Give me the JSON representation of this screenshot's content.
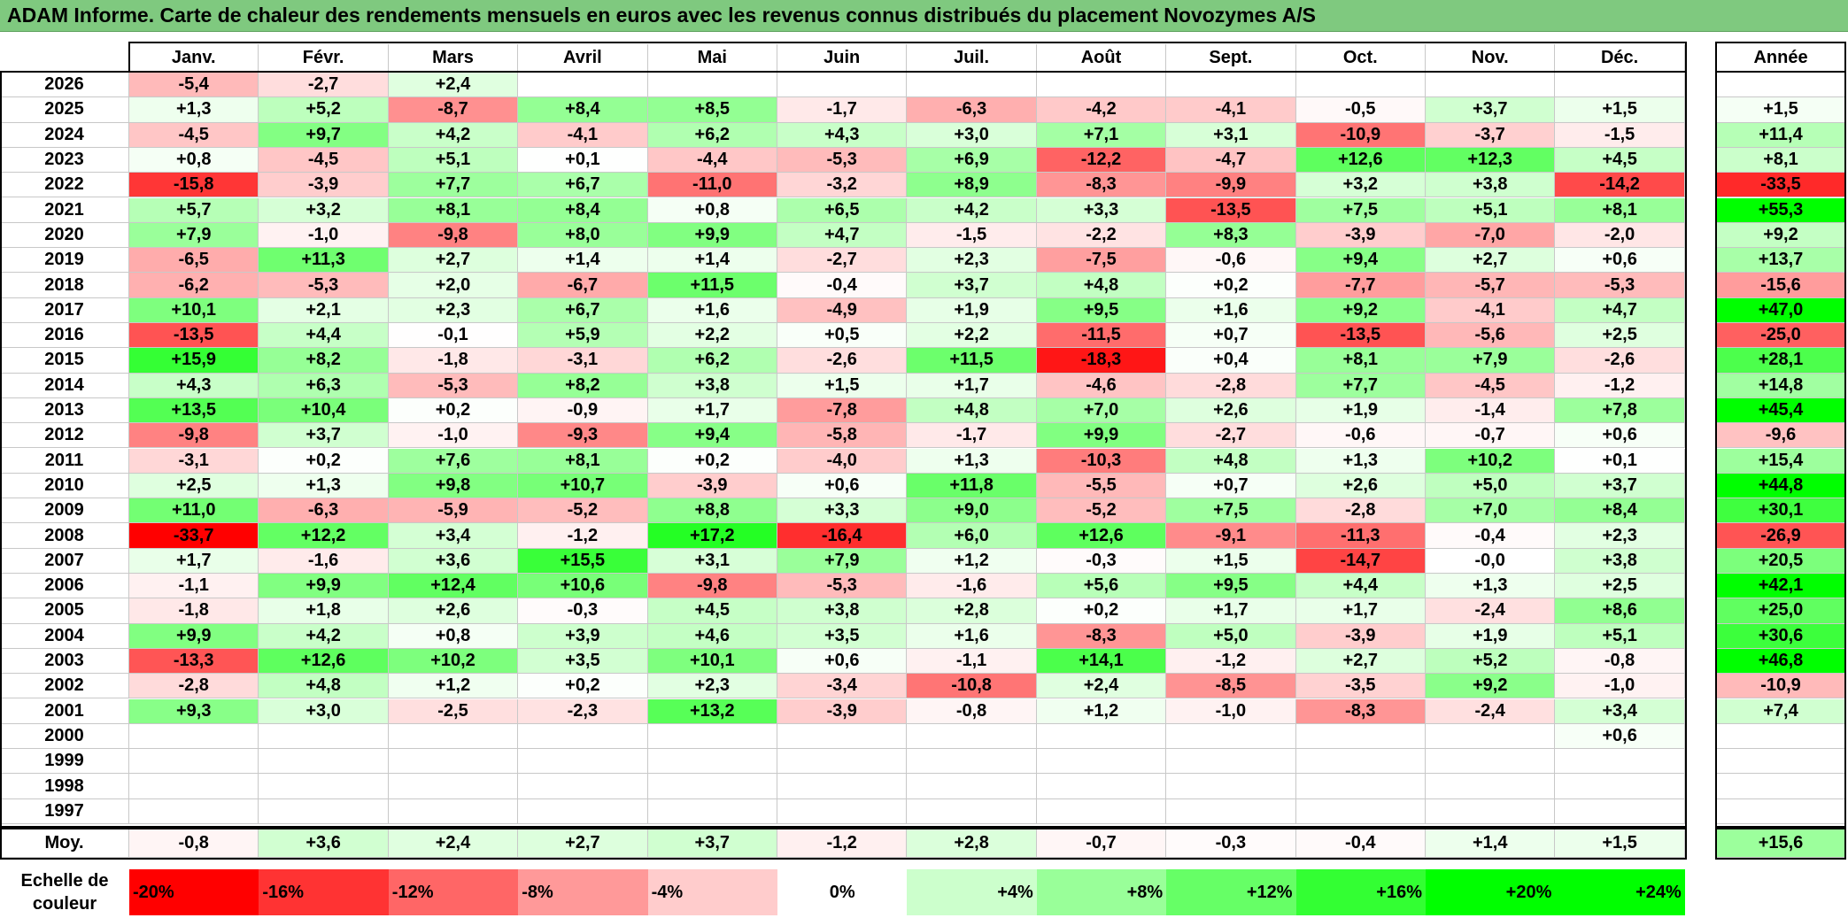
{
  "title": "ADAM Informe. Carte de chaleur des rendements mensuels en euros avec les revenus connus distribués du placement Novozymes A/S",
  "chart_data": {
    "type": "heatmap",
    "title": "ADAM Informe. Carte de chaleur des rendements mensuels en euros avec les revenus connus distribués du placement Novozymes A/S",
    "columns": [
      "Janv.",
      "Févr.",
      "Mars",
      "Avril",
      "Mai",
      "Juin",
      "Juil.",
      "Août",
      "Sept.",
      "Oct.",
      "Nov.",
      "Déc."
    ],
    "year_label": "Année",
    "rows": [
      {
        "year": "2026",
        "values": [
          "-5,4",
          "-2,7",
          "+2,4",
          "",
          "",
          "",
          "",
          "",
          "",
          "",
          "",
          ""
        ],
        "annual": ""
      },
      {
        "year": "2025",
        "values": [
          "+1,3",
          "+5,2",
          "-8,7",
          "+8,4",
          "+8,5",
          "-1,7",
          "-6,3",
          "-4,2",
          "-4,1",
          "-0,5",
          "+3,7",
          "+1,5"
        ],
        "annual": "+1,5"
      },
      {
        "year": "2024",
        "values": [
          "-4,5",
          "+9,7",
          "+4,2",
          "-4,1",
          "+6,2",
          "+4,3",
          "+3,0",
          "+7,1",
          "+3,1",
          "-10,9",
          "-3,7",
          "-1,5"
        ],
        "annual": "+11,4"
      },
      {
        "year": "2023",
        "values": [
          "+0,8",
          "-4,5",
          "+5,1",
          "+0,1",
          "-4,4",
          "-5,3",
          "+6,9",
          "-12,2",
          "-4,7",
          "+12,6",
          "+12,3",
          "+4,5"
        ],
        "annual": "+8,1"
      },
      {
        "year": "2022",
        "values": [
          "-15,8",
          "-3,9",
          "+7,7",
          "+6,7",
          "-11,0",
          "-3,2",
          "+8,9",
          "-8,3",
          "-9,9",
          "+3,2",
          "+3,8",
          "-14,2"
        ],
        "annual": "-33,5"
      },
      {
        "year": "2021",
        "values": [
          "+5,7",
          "+3,2",
          "+8,1",
          "+8,4",
          "+0,8",
          "+6,5",
          "+4,2",
          "+3,3",
          "-13,5",
          "+7,5",
          "+5,1",
          "+8,1"
        ],
        "annual": "+55,3"
      },
      {
        "year": "2020",
        "values": [
          "+7,9",
          "-1,0",
          "-9,8",
          "+8,0",
          "+9,9",
          "+4,7",
          "-1,5",
          "-2,2",
          "+8,3",
          "-3,9",
          "-7,0",
          "-2,0"
        ],
        "annual": "+9,2"
      },
      {
        "year": "2019",
        "values": [
          "-6,5",
          "+11,3",
          "+2,7",
          "+1,4",
          "+1,4",
          "-2,7",
          "+2,3",
          "-7,5",
          "-0,6",
          "+9,4",
          "+2,7",
          "+0,6"
        ],
        "annual": "+13,7"
      },
      {
        "year": "2018",
        "values": [
          "-6,2",
          "-5,3",
          "+2,0",
          "-6,7",
          "+11,5",
          "-0,4",
          "+3,7",
          "+4,8",
          "+0,2",
          "-7,7",
          "-5,7",
          "-5,3"
        ],
        "annual": "-15,6"
      },
      {
        "year": "2017",
        "values": [
          "+10,1",
          "+2,1",
          "+2,3",
          "+6,7",
          "+1,6",
          "-4,9",
          "+1,9",
          "+9,5",
          "+1,6",
          "+9,2",
          "-4,1",
          "+4,7"
        ],
        "annual": "+47,0"
      },
      {
        "year": "2016",
        "values": [
          "-13,5",
          "+4,4",
          "-0,1",
          "+5,9",
          "+2,2",
          "+0,5",
          "+2,2",
          "-11,5",
          "+0,7",
          "-13,5",
          "-5,6",
          "+2,5"
        ],
        "annual": "-25,0"
      },
      {
        "year": "2015",
        "values": [
          "+15,9",
          "+8,2",
          "-1,8",
          "-3,1",
          "+6,2",
          "-2,6",
          "+11,5",
          "-18,3",
          "+0,4",
          "+8,1",
          "+7,9",
          "-2,6"
        ],
        "annual": "+28,1"
      },
      {
        "year": "2014",
        "values": [
          "+4,3",
          "+6,3",
          "-5,3",
          "+8,2",
          "+3,8",
          "+1,5",
          "+1,7",
          "-4,6",
          "-2,8",
          "+7,7",
          "-4,5",
          "-1,2"
        ],
        "annual": "+14,8"
      },
      {
        "year": "2013",
        "values": [
          "+13,5",
          "+10,4",
          "+0,2",
          "-0,9",
          "+1,7",
          "-7,8",
          "+4,8",
          "+7,0",
          "+2,6",
          "+1,9",
          "-1,4",
          "+7,8"
        ],
        "annual": "+45,4"
      },
      {
        "year": "2012",
        "values": [
          "-9,8",
          "+3,7",
          "-1,0",
          "-9,3",
          "+9,4",
          "-5,8",
          "-1,7",
          "+9,9",
          "-2,7",
          "-0,6",
          "-0,7",
          "+0,6"
        ],
        "annual": "-9,6"
      },
      {
        "year": "2011",
        "values": [
          "-3,1",
          "+0,2",
          "+7,6",
          "+8,1",
          "+0,2",
          "-4,0",
          "+1,3",
          "-10,3",
          "+4,8",
          "+1,3",
          "+10,2",
          "+0,1"
        ],
        "annual": "+15,4"
      },
      {
        "year": "2010",
        "values": [
          "+2,5",
          "+1,3",
          "+9,8",
          "+10,7",
          "-3,9",
          "+0,6",
          "+11,8",
          "-5,5",
          "+0,7",
          "+2,6",
          "+5,0",
          "+3,7"
        ],
        "annual": "+44,8"
      },
      {
        "year": "2009",
        "values": [
          "+11,0",
          "-6,3",
          "-5,9",
          "-5,2",
          "+8,8",
          "+3,3",
          "+9,0",
          "-5,2",
          "+7,5",
          "-2,8",
          "+7,0",
          "+8,4"
        ],
        "annual": "+30,1"
      },
      {
        "year": "2008",
        "values": [
          "-33,7",
          "+12,2",
          "+3,4",
          "-1,2",
          "+17,2",
          "-16,4",
          "+6,0",
          "+12,6",
          "-9,1",
          "-11,3",
          "-0,4",
          "+2,3"
        ],
        "annual": "-26,9"
      },
      {
        "year": "2007",
        "values": [
          "+1,7",
          "-1,6",
          "+3,6",
          "+15,5",
          "+3,1",
          "+7,9",
          "+1,2",
          "-0,3",
          "+1,5",
          "-14,7",
          "-0,0",
          "+3,8"
        ],
        "annual": "+20,5"
      },
      {
        "year": "2006",
        "values": [
          "-1,1",
          "+9,9",
          "+12,4",
          "+10,6",
          "-9,8",
          "-5,3",
          "-1,6",
          "+5,6",
          "+9,5",
          "+4,4",
          "+1,3",
          "+2,5"
        ],
        "annual": "+42,1"
      },
      {
        "year": "2005",
        "values": [
          "-1,8",
          "+1,8",
          "+2,6",
          "-0,3",
          "+4,5",
          "+3,8",
          "+2,8",
          "+0,2",
          "+1,7",
          "+1,7",
          "-2,4",
          "+8,6"
        ],
        "annual": "+25,0"
      },
      {
        "year": "2004",
        "values": [
          "+9,9",
          "+4,2",
          "+0,8",
          "+3,9",
          "+4,6",
          "+3,5",
          "+1,6",
          "-8,3",
          "+5,0",
          "-3,9",
          "+1,9",
          "+5,1"
        ],
        "annual": "+30,6"
      },
      {
        "year": "2003",
        "values": [
          "-13,3",
          "+12,6",
          "+10,2",
          "+3,5",
          "+10,1",
          "+0,6",
          "-1,1",
          "+14,1",
          "-1,2",
          "+2,7",
          "+5,2",
          "-0,8"
        ],
        "annual": "+46,8"
      },
      {
        "year": "2002",
        "values": [
          "-2,8",
          "+4,8",
          "+1,2",
          "+0,2",
          "+2,3",
          "-3,4",
          "-10,8",
          "+2,4",
          "-8,5",
          "-3,5",
          "+9,2",
          "-1,0"
        ],
        "annual": "-10,9"
      },
      {
        "year": "2001",
        "values": [
          "+9,3",
          "+3,0",
          "-2,5",
          "-2,3",
          "+13,2",
          "-3,9",
          "-0,8",
          "+1,2",
          "-1,0",
          "-8,3",
          "-2,4",
          "+3,4"
        ],
        "annual": "+7,4"
      },
      {
        "year": "2000",
        "values": [
          "",
          "",
          "",
          "",
          "",
          "",
          "",
          "",
          "",
          "",
          "",
          "+0,6"
        ],
        "annual": ""
      },
      {
        "year": "1999",
        "values": [
          "",
          "",
          "",
          "",
          "",
          "",
          "",
          "",
          "",
          "",
          "",
          ""
        ],
        "annual": ""
      },
      {
        "year": "1998",
        "values": [
          "",
          "",
          "",
          "",
          "",
          "",
          "",
          "",
          "",
          "",
          "",
          ""
        ],
        "annual": ""
      },
      {
        "year": "1997",
        "values": [
          "",
          "",
          "",
          "",
          "",
          "",
          "",
          "",
          "",
          "",
          "",
          ""
        ],
        "annual": ""
      }
    ],
    "average": {
      "label": "Moy.",
      "values": [
        "-0,8",
        "+3,6",
        "+2,4",
        "+2,7",
        "+3,7",
        "-1,2",
        "+2,8",
        "-0,7",
        "-0,3",
        "-0,4",
        "+1,4",
        "+1,5"
      ],
      "annual": "+15,6"
    },
    "scale": {
      "label_line1": "Echelle de",
      "label_line2": "couleur",
      "steps": [
        "-20%",
        "-16%",
        "-12%",
        "-8%",
        "-4%",
        "0%",
        "+4%",
        "+8%",
        "+12%",
        "+16%",
        "+20%",
        "+24%"
      ],
      "colors": [
        "#ff0000",
        "#ff3333",
        "#ff6666",
        "#ff9999",
        "#ffcccc",
        "#ffffff",
        "#ccffcc",
        "#99ff99",
        "#66ff66",
        "#33ff33",
        "#00ff00",
        "#00ff00"
      ]
    },
    "color_negative": "#ff0000",
    "color_positive": "#00ff00"
  }
}
